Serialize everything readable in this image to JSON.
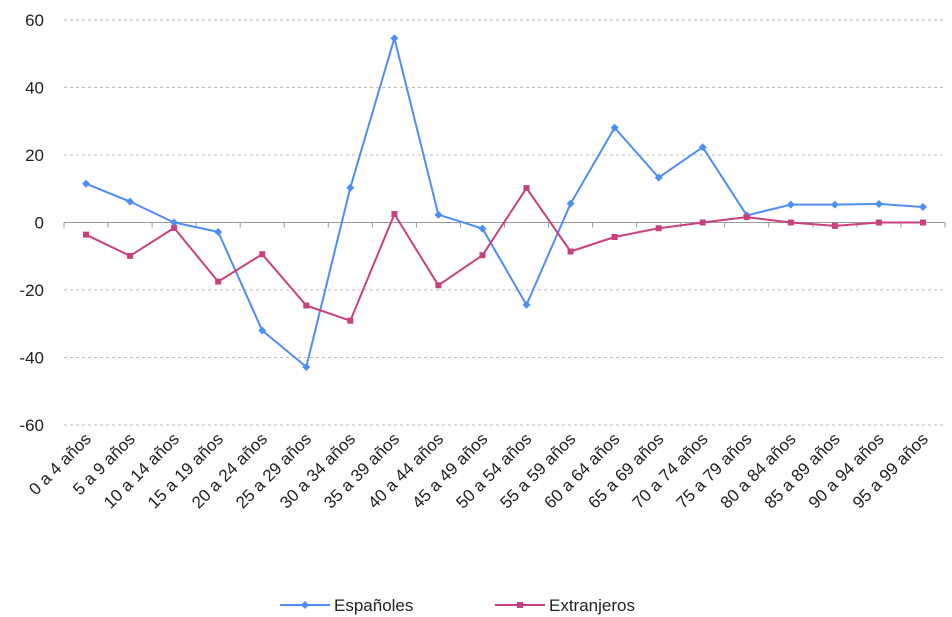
{
  "chart_data": {
    "type": "line",
    "title": "",
    "xlabel": "",
    "ylabel": "",
    "ylim": [
      -60,
      60
    ],
    "yticks": [
      60,
      40,
      20,
      0,
      -20,
      -40,
      -60
    ],
    "ytick_labels": [
      "60",
      "40",
      "20",
      "0",
      "-20",
      "-40",
      "-60"
    ],
    "grid": true,
    "legend_position": "bottom",
    "categories": [
      "0 a 4 años",
      "5 a 9 años",
      "10 a 14 años",
      "15 a 19 años",
      "20 a 24 años",
      "25 a 29 años",
      "30 a 34 años",
      "35 a 39 años",
      "40 a 44 años",
      "45 a 49 años",
      "50 a 54 años",
      "55 a 59 años",
      "60 a 64 años",
      "65 a 69 años",
      "70 a 74 años",
      "75 a 79 años",
      "80 a 84 años",
      "85 a 89 años",
      "90 a 94 años",
      "95 a 99 años"
    ],
    "series": [
      {
        "name": "Españoles",
        "color": "#4f8ef7",
        "marker": "diamond",
        "values": [
          11.5,
          6.2,
          0,
          -2.8,
          -32,
          -42.8,
          10.3,
          54.6,
          2.3,
          -1.8,
          -24.4,
          5.6,
          28.1,
          13.3,
          22.3,
          2.1,
          5.3,
          5.3,
          5.5,
          4.6
        ]
      },
      {
        "name": "Extranjeros",
        "color": "#c9407e",
        "marker": "square",
        "values": [
          -3.6,
          -9.9,
          -1.6,
          -17.5,
          -9.4,
          -24.6,
          -29.1,
          2.5,
          -18.6,
          -9.7,
          10.2,
          -8.6,
          -4.3,
          -1.7,
          0,
          1.6,
          0,
          -1,
          0,
          0
        ]
      }
    ]
  }
}
